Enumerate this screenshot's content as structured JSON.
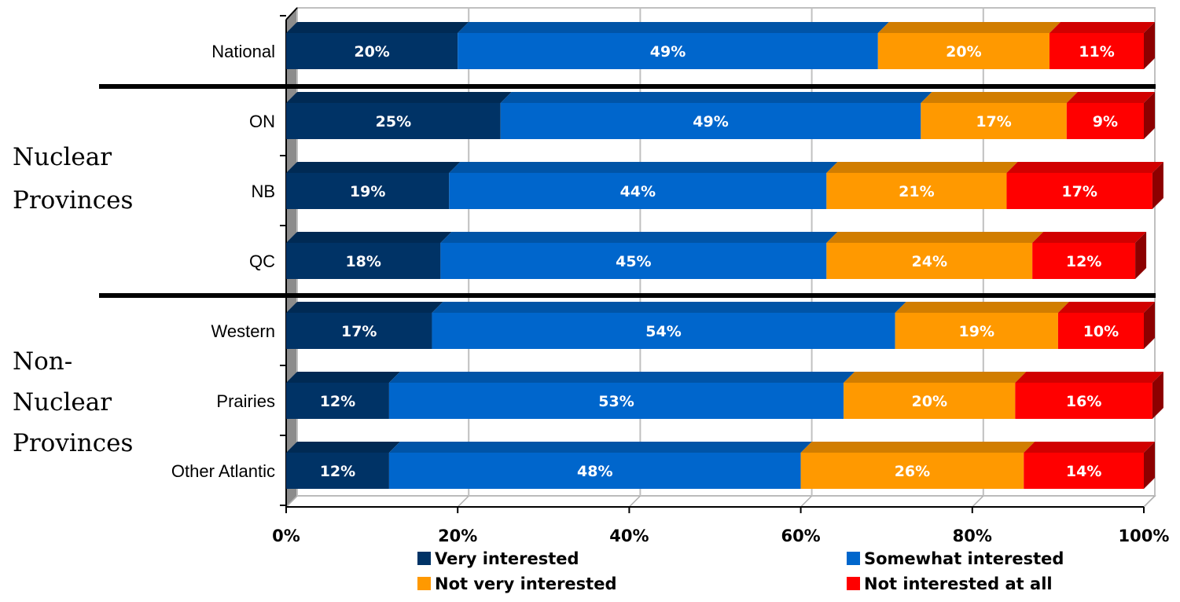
{
  "chart_data": {
    "type": "bar",
    "orientation": "horizontal",
    "stacked": "percent",
    "categories": [
      "National",
      "ON",
      "NB",
      "QC",
      "Western",
      "Prairies",
      "Other Atlantic"
    ],
    "series": [
      {
        "name": "Very interested",
        "color": "#003366",
        "values": [
          20,
          25,
          19,
          18,
          17,
          12,
          12
        ],
        "labels": [
          "20%",
          "25%",
          "19%",
          "18%",
          "17%",
          "12%",
          "12%"
        ]
      },
      {
        "name": "Somewhat interested",
        "color": "#0066cc",
        "values": [
          49,
          49,
          44,
          45,
          54,
          53,
          48
        ],
        "labels": [
          "49%",
          "49%",
          "44%",
          "45%",
          "54%",
          "53%",
          "48%"
        ]
      },
      {
        "name": "Not very interested",
        "color": "#ff9900",
        "values": [
          20,
          17,
          21,
          24,
          19,
          20,
          26
        ],
        "labels": [
          "20%",
          "17%",
          "21%",
          "24%",
          "19%",
          "20%",
          "26%"
        ]
      },
      {
        "name": "Not interested at all",
        "color": "#ff0000",
        "values": [
          11,
          9,
          17,
          12,
          10,
          16,
          14
        ],
        "labels": [
          "11%",
          "9%",
          "17%",
          "12%",
          "10%",
          "16%",
          "14%"
        ]
      }
    ],
    "xlim": [
      0,
      100
    ],
    "xticks": [
      "0%",
      "20%",
      "40%",
      "60%",
      "80%",
      "100%"
    ],
    "grid": true,
    "legend_position": "bottom",
    "groups": [
      {
        "label_lines": [
          "Nuclear",
          "Provinces"
        ],
        "categories": [
          "ON",
          "NB",
          "QC"
        ]
      },
      {
        "label_lines": [
          "Non-",
          "Nuclear",
          "Provinces"
        ],
        "categories": [
          "Western",
          "Prairies",
          "Other Atlantic"
        ]
      }
    ]
  }
}
